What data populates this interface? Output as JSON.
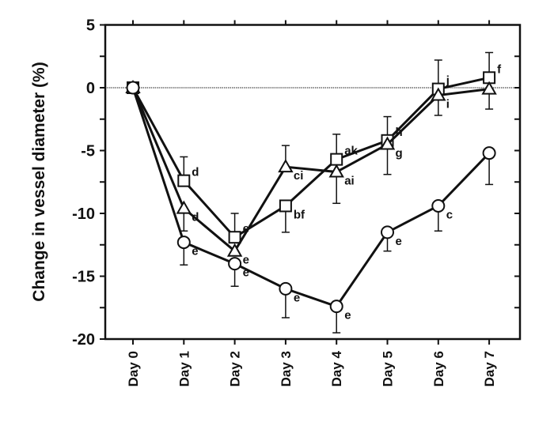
{
  "chart_data": {
    "type": "line",
    "title": "",
    "xlabel": "",
    "ylabel": "Change in vessel diameter (%)",
    "categories": [
      "Day 0",
      "Day 1",
      "Day 2",
      "Day 3",
      "Day 4",
      "Day 5",
      "Day 6",
      "Day 7"
    ],
    "ylim": [
      -20,
      5
    ],
    "yticks": [
      5,
      0,
      -5,
      -10,
      -15,
      -20
    ],
    "grid": false,
    "reference_line": 0,
    "series": [
      {
        "marker": "square",
        "values": [
          0,
          -7.4,
          -11.9,
          -9.4,
          -5.7,
          -4.2,
          -0.1,
          0.8
        ],
        "errors": [
          0,
          1.9,
          1.9,
          2.1,
          2.0,
          1.9,
          2.3,
          2.0
        ],
        "error_dir": [
          0,
          1,
          1,
          -1,
          1,
          1,
          1,
          1
        ],
        "annotations": [
          "",
          "d",
          "e",
          "bf",
          "ak",
          "h",
          "j",
          "f"
        ]
      },
      {
        "marker": "triangle",
        "values": [
          0,
          -9.6,
          -13.0,
          -6.3,
          -6.7,
          -4.5,
          -0.6,
          -0.1
        ],
        "errors": [
          0,
          1.8,
          0,
          1.7,
          2.5,
          2.4,
          1.6,
          1.6
        ],
        "error_dir": [
          0,
          -1,
          -1,
          1,
          -1,
          -1,
          -1,
          -1
        ],
        "annotations": [
          "",
          "d",
          "e",
          "ci",
          "ai",
          "g",
          "i",
          ""
        ]
      },
      {
        "marker": "circle",
        "values": [
          0,
          -12.3,
          -14.0,
          -16.0,
          -17.4,
          -11.5,
          -9.4,
          -5.2
        ],
        "errors": [
          0,
          1.8,
          1.8,
          2.3,
          2.1,
          1.5,
          2.0,
          2.5
        ],
        "error_dir": [
          0,
          -1,
          -1,
          -1,
          -1,
          -1,
          -1,
          -1
        ],
        "annotations": [
          "",
          "e",
          "e",
          "e",
          "e",
          "e",
          "c",
          ""
        ]
      }
    ]
  }
}
